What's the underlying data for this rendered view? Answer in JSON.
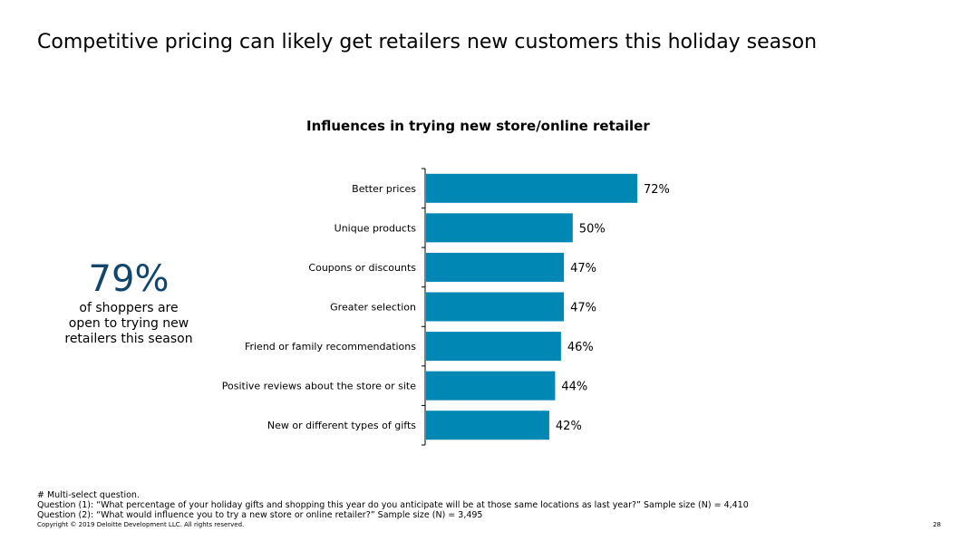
{
  "slide": {
    "title": "Competitive pricing can likely get retailers new customers this holiday season",
    "page_number": "28",
    "copyright": "Copyright © 2019 Deloitte Development LLC. All rights reserved."
  },
  "stat": {
    "value": "79%",
    "text_lines": [
      "of shoppers are",
      "open to trying new",
      "retailers this season"
    ]
  },
  "footnotes": [
    "# Multi-select question.",
    "Question (1): “What percentage of your holiday gifts and shopping this year do you anticipate will be at those same locations as last year?” Sample size (N) = 4,410",
    "Question (2): “What would influence you to try a new store or online retailer?” Sample size (N) = 3,495"
  ],
  "chart_data": {
    "type": "bar",
    "orientation": "horizontal",
    "title": "Influences in trying new store/online retailer",
    "categories": [
      "Better prices",
      "Unique products",
      "Coupons or discounts",
      "Greater selection",
      "Friend or family recommendations",
      "Positive reviews about the store or site",
      "New or different types of gifts"
    ],
    "values": [
      72,
      50,
      47,
      47,
      46,
      44,
      42
    ],
    "data_labels": [
      "72%",
      "50%",
      "47%",
      "47%",
      "46%",
      "44%",
      "42%"
    ],
    "unit": "%",
    "xlim": [
      0,
      100
    ],
    "bar_color": "#0087b4",
    "grid": false,
    "legend": "none"
  }
}
